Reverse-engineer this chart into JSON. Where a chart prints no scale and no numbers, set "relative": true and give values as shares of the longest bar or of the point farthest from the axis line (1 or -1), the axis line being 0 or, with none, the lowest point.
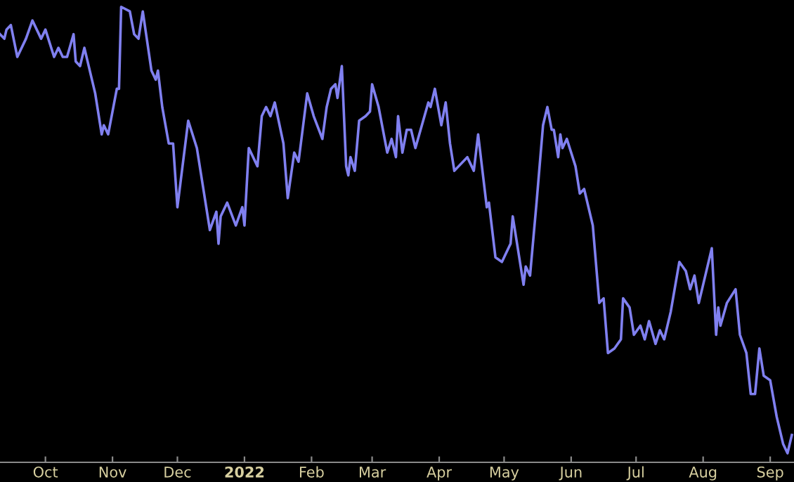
{
  "chart_data": {
    "type": "line",
    "relative": true,
    "grid": false,
    "legend": false,
    "marker": "none",
    "line_style": "solid",
    "x": [
      "2021-09-10",
      "2021-09-12",
      "2021-09-13",
      "2021-09-15",
      "2021-09-18",
      "2021-09-22",
      "2021-09-25",
      "2021-09-29",
      "2021-10-01",
      "2021-10-05",
      "2021-10-07",
      "2021-10-09",
      "2021-10-11",
      "2021-10-14",
      "2021-10-15",
      "2021-10-17",
      "2021-10-19",
      "2021-10-24",
      "2021-10-27",
      "2021-10-28",
      "2021-10-30",
      "2021-11-03",
      "2021-11-04",
      "2021-11-05",
      "2021-11-09",
      "2021-11-11",
      "2021-11-13",
      "2021-11-15",
      "2021-11-19",
      "2021-11-21",
      "2021-11-22",
      "2021-11-24",
      "2021-11-27",
      "2021-11-29",
      "2021-12-01",
      "2021-12-06",
      "2021-12-10",
      "2021-12-16",
      "2021-12-19",
      "2021-12-20",
      "2021-12-21",
      "2021-12-24",
      "2021-12-28",
      "2021-12-31",
      "2022-01-01",
      "2022-01-03",
      "2022-01-07",
      "2022-01-09",
      "2022-01-11",
      "2022-01-13",
      "2022-01-15",
      "2022-01-19",
      "2022-01-21",
      "2022-01-24",
      "2022-01-26",
      "2022-01-30",
      "2022-02-02",
      "2022-02-06",
      "2022-02-08",
      "2022-02-10",
      "2022-02-12",
      "2022-02-13",
      "2022-02-15",
      "2022-02-17",
      "2022-02-18",
      "2022-02-19",
      "2022-02-21",
      "2022-02-23",
      "2022-02-26",
      "2022-02-28",
      "2022-03-01",
      "2022-03-04",
      "2022-03-08",
      "2022-03-10",
      "2022-03-12",
      "2022-03-13",
      "2022-03-15",
      "2022-03-17",
      "2022-03-19",
      "2022-03-21",
      "2022-03-24",
      "2022-03-27",
      "2022-03-28",
      "2022-03-30",
      "2022-04-02",
      "2022-04-04",
      "2022-04-06",
      "2022-04-08",
      "2022-04-10",
      "2022-04-14",
      "2022-04-17",
      "2022-04-19",
      "2022-04-23",
      "2022-04-24",
      "2022-04-27",
      "2022-04-30",
      "2022-05-04",
      "2022-05-05",
      "2022-05-10",
      "2022-05-11",
      "2022-05-13",
      "2022-05-16",
      "2022-05-19",
      "2022-05-21",
      "2022-05-23",
      "2022-05-24",
      "2022-05-26",
      "2022-05-27",
      "2022-05-28",
      "2022-05-30",
      "2022-06-03",
      "2022-06-05",
      "2022-06-07",
      "2022-06-11",
      "2022-06-14",
      "2022-06-16",
      "2022-06-18",
      "2022-06-21",
      "2022-06-24",
      "2022-06-25",
      "2022-06-28",
      "2022-06-30",
      "2022-07-03",
      "2022-07-05",
      "2022-07-07",
      "2022-07-10",
      "2022-07-12",
      "2022-07-14",
      "2022-07-17",
      "2022-07-21",
      "2022-07-24",
      "2022-07-26",
      "2022-07-28",
      "2022-07-30",
      "2022-08-05",
      "2022-08-07",
      "2022-08-08",
      "2022-08-09",
      "2022-08-12",
      "2022-08-16",
      "2022-08-18",
      "2022-08-21",
      "2022-08-23",
      "2022-08-25",
      "2022-08-27",
      "2022-08-29",
      "2022-09-01",
      "2022-09-04",
      "2022-09-07",
      "2022-09-09",
      "2022-09-11"
    ],
    "series": [
      {
        "color": "#8080f0",
        "values": [
          0.94,
          0.93,
          0.95,
          0.96,
          0.89,
          0.93,
          0.97,
          0.93,
          0.95,
          0.89,
          0.91,
          0.89,
          0.89,
          0.94,
          0.88,
          0.87,
          0.91,
          0.81,
          0.72,
          0.74,
          0.72,
          0.82,
          0.82,
          1.0,
          0.99,
          0.94,
          0.93,
          0.99,
          0.86,
          0.84,
          0.86,
          0.78,
          0.7,
          0.7,
          0.56,
          0.75,
          0.69,
          0.51,
          0.55,
          0.48,
          0.54,
          0.57,
          0.52,
          0.56,
          0.52,
          0.69,
          0.65,
          0.76,
          0.78,
          0.76,
          0.79,
          0.7,
          0.58,
          0.68,
          0.66,
          0.81,
          0.76,
          0.71,
          0.78,
          0.82,
          0.83,
          0.8,
          0.87,
          0.65,
          0.63,
          0.67,
          0.64,
          0.75,
          0.76,
          0.77,
          0.83,
          0.78,
          0.68,
          0.71,
          0.67,
          0.76,
          0.68,
          0.73,
          0.73,
          0.69,
          0.74,
          0.79,
          0.78,
          0.82,
          0.74,
          0.79,
          0.7,
          0.64,
          0.65,
          0.67,
          0.64,
          0.72,
          0.56,
          0.57,
          0.45,
          0.44,
          0.48,
          0.54,
          0.39,
          0.43,
          0.41,
          0.57,
          0.74,
          0.78,
          0.73,
          0.73,
          0.67,
          0.72,
          0.69,
          0.71,
          0.65,
          0.59,
          0.6,
          0.52,
          0.35,
          0.36,
          0.24,
          0.25,
          0.27,
          0.36,
          0.34,
          0.28,
          0.3,
          0.27,
          0.31,
          0.26,
          0.29,
          0.27,
          0.33,
          0.44,
          0.42,
          0.38,
          0.41,
          0.35,
          0.47,
          0.28,
          0.34,
          0.3,
          0.35,
          0.38,
          0.28,
          0.24,
          0.15,
          0.15,
          0.25,
          0.19,
          0.18,
          0.1,
          0.04,
          0.02,
          0.06
        ]
      }
    ],
    "xlim": [
      "2021-09-10",
      "2022-09-12"
    ],
    "xticks": [
      {
        "value": "2021-10-01",
        "label": "Oct"
      },
      {
        "value": "2021-11-01",
        "label": "Nov"
      },
      {
        "value": "2021-12-01",
        "label": "Dec"
      },
      {
        "value": "2022-01-01",
        "label": "2022"
      },
      {
        "value": "2022-02-01",
        "label": "Feb"
      },
      {
        "value": "2022-03-01",
        "label": "Mar"
      },
      {
        "value": "2022-04-01",
        "label": "Apr"
      },
      {
        "value": "2022-05-01",
        "label": "May"
      },
      {
        "value": "2022-06-01",
        "label": "Jun"
      },
      {
        "value": "2022-07-01",
        "label": "Jul"
      },
      {
        "value": "2022-08-01",
        "label": "Aug"
      },
      {
        "value": "2022-09-01",
        "label": "Sep"
      }
    ]
  }
}
